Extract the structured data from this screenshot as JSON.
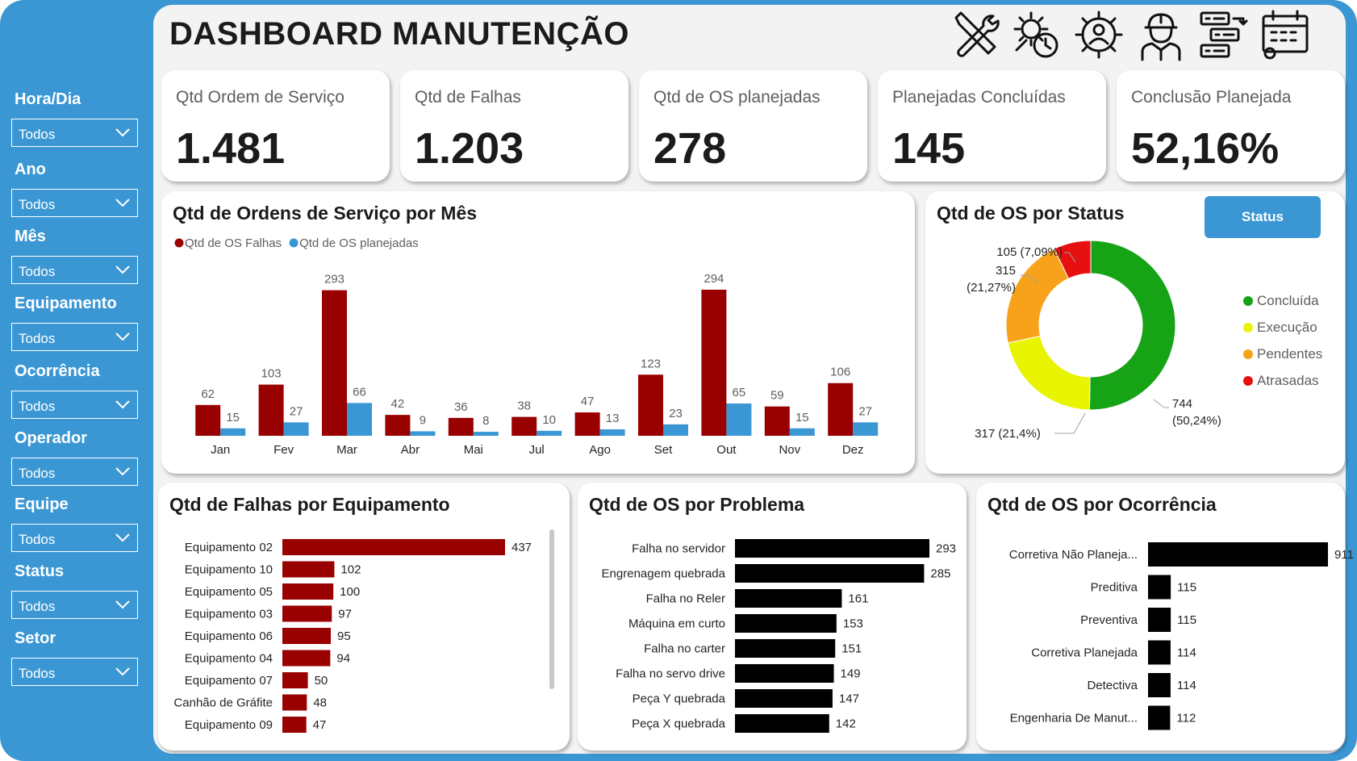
{
  "header": {
    "title": "DASHBOARD MANUTENÇÃO"
  },
  "icons": [
    "tools-icon",
    "gear-clock-icon",
    "gear-person-icon",
    "engineer-icon",
    "transfer-list-icon",
    "calendar-gear-icon"
  ],
  "colors": {
    "sidebar": "#3b97d4",
    "falhas": "#990000",
    "planejadas": "#3b97d4",
    "concluida": "#16a316",
    "execucao": "#e8f400",
    "pendentes": "#f7a21a",
    "atrasadas": "#e61010",
    "black_bar": "#000000"
  },
  "filters": [
    {
      "label": "Hora/Dia",
      "value": "Todos"
    },
    {
      "label": "Ano",
      "value": "Todos"
    },
    {
      "label": "Mês",
      "value": "Todos"
    },
    {
      "label": "Equipamento",
      "value": "Todos"
    },
    {
      "label": "Ocorrência",
      "value": "Todos"
    },
    {
      "label": "Operador",
      "value": "Todos"
    },
    {
      "label": "Equipe",
      "value": "Todos"
    },
    {
      "label": "Status",
      "value": "Todos"
    },
    {
      "label": "Setor",
      "value": "Todos"
    }
  ],
  "kpis": [
    {
      "label": "Qtd Ordem de Serviço",
      "value": "1.481"
    },
    {
      "label": "Qtd de Falhas",
      "value": "1.203"
    },
    {
      "label": "Qtd de OS planejadas",
      "value": "278"
    },
    {
      "label": "Planejadas Concluídas",
      "value": "145"
    },
    {
      "label": "Conclusão Planejada",
      "value": "52,16%"
    }
  ],
  "status_button": "Status",
  "chart_data": [
    {
      "type": "bar",
      "title": "Qtd de Ordens de Serviço por Mês",
      "categories": [
        "Jan",
        "Fev",
        "Mar",
        "Abr",
        "Mai",
        "Jul",
        "Ago",
        "Set",
        "Out",
        "Nov",
        "Dez"
      ],
      "series": [
        {
          "name": "Qtd de OS Falhas",
          "values": [
            62,
            103,
            293,
            42,
            36,
            38,
            47,
            123,
            294,
            59,
            106
          ]
        },
        {
          "name": "Qtd de OS planejadas",
          "values": [
            15,
            27,
            66,
            9,
            8,
            10,
            13,
            23,
            65,
            15,
            27
          ]
        }
      ],
      "legend": "top-left",
      "grid": false
    },
    {
      "type": "pie",
      "title": "Qtd de OS por Status",
      "labels": [
        "Concluída",
        "Execução",
        "Pendentes",
        "Atrasadas"
      ],
      "values": [
        744,
        317,
        315,
        105
      ],
      "data_labels": [
        "744 (50,24%)",
        "317 (21,4%)",
        "315 (21,27%)",
        "105 (7,09%)"
      ],
      "donut": true,
      "legend": "right"
    },
    {
      "type": "bar",
      "orientation": "horizontal",
      "title": "Qtd de Falhas por Equipamento",
      "categories": [
        "Equipamento 02",
        "Equipamento 10",
        "Equipamento 05",
        "Equipamento 03",
        "Equipamento 06",
        "Equipamento 04",
        "Equipamento 07",
        "Canhão de Gráfite",
        "Equipamento 09"
      ],
      "values": [
        437,
        102,
        100,
        97,
        95,
        94,
        50,
        48,
        47
      ]
    },
    {
      "type": "bar",
      "orientation": "horizontal",
      "title": "Qtd de OS por Problema",
      "categories": [
        "Falha no servidor",
        "Engrenagem quebrada",
        "Falha no Reler",
        "Máquina em curto",
        "Falha no carter",
        "Falha no servo drive",
        "Peça Y quebrada",
        "Peça X quebrada"
      ],
      "values": [
        293,
        285,
        161,
        153,
        151,
        149,
        147,
        142
      ]
    },
    {
      "type": "bar",
      "orientation": "horizontal",
      "title": "Qtd de OS por Ocorrência",
      "categories": [
        "Corretiva Não Planeja...",
        "Preditiva",
        "Preventiva",
        "Corretiva Planejada",
        "Detectiva",
        "Engenharia De Manut..."
      ],
      "values": [
        911,
        115,
        115,
        114,
        114,
        112
      ]
    }
  ]
}
